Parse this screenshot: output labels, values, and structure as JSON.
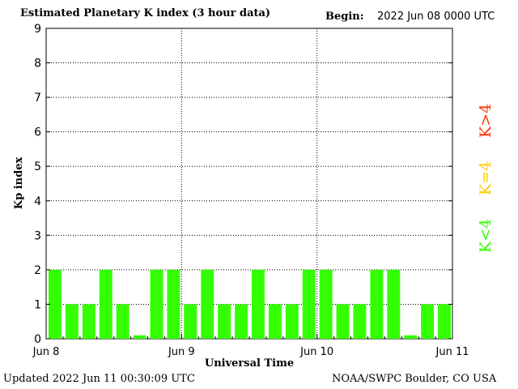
{
  "header": {
    "title": "Estimated Planetary K index (3 hour data)",
    "begin_label": "Begin:",
    "begin_value": "2022 Jun 08 0000 UTC"
  },
  "footer": {
    "updated": "Updated 2022 Jun 11 00:30:09 UTC",
    "source": "NOAA/SWPC Boulder, CO USA"
  },
  "legend": {
    "items": [
      {
        "label": "K<4",
        "color": "#33ff00"
      },
      {
        "label": "K=4",
        "color": "#ffcc00"
      },
      {
        "label": "K>4",
        "color": "#ff3300"
      }
    ]
  },
  "chart_data": {
    "type": "bar",
    "xlabel": "Universal Time",
    "ylabel": "Kp index",
    "ylim": [
      0,
      9
    ],
    "yticks": [
      "0",
      "1",
      "2",
      "3",
      "4",
      "5",
      "6",
      "7",
      "8",
      "9"
    ],
    "xticks": [
      "Jun 8",
      "Jun 9",
      "Jun 10",
      "Jun 11"
    ],
    "grid": true,
    "bar_color": "#33ff00",
    "values": [
      2,
      1,
      1,
      2,
      1,
      0.1,
      2,
      2,
      1,
      2,
      1,
      1,
      2,
      1,
      1,
      2,
      2,
      1,
      1,
      2,
      2,
      0.1,
      1,
      1
    ]
  }
}
